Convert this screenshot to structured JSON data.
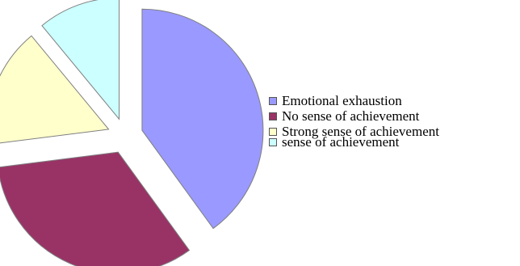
{
  "chart_data": {
    "type": "pie",
    "title": "",
    "exploded": true,
    "legend_position": "right",
    "slices": [
      {
        "label": "Emotional exhaustion",
        "value": 40,
        "color": "#9999ff"
      },
      {
        "label": "No sense of achievement",
        "value": 33,
        "color": "#993366"
      },
      {
        "label": "Strong sense of achievement",
        "value": 16,
        "color": "#ffffcc"
      },
      {
        "label": "sense of achievement",
        "value": 11,
        "color": "#ccffff"
      }
    ]
  }
}
